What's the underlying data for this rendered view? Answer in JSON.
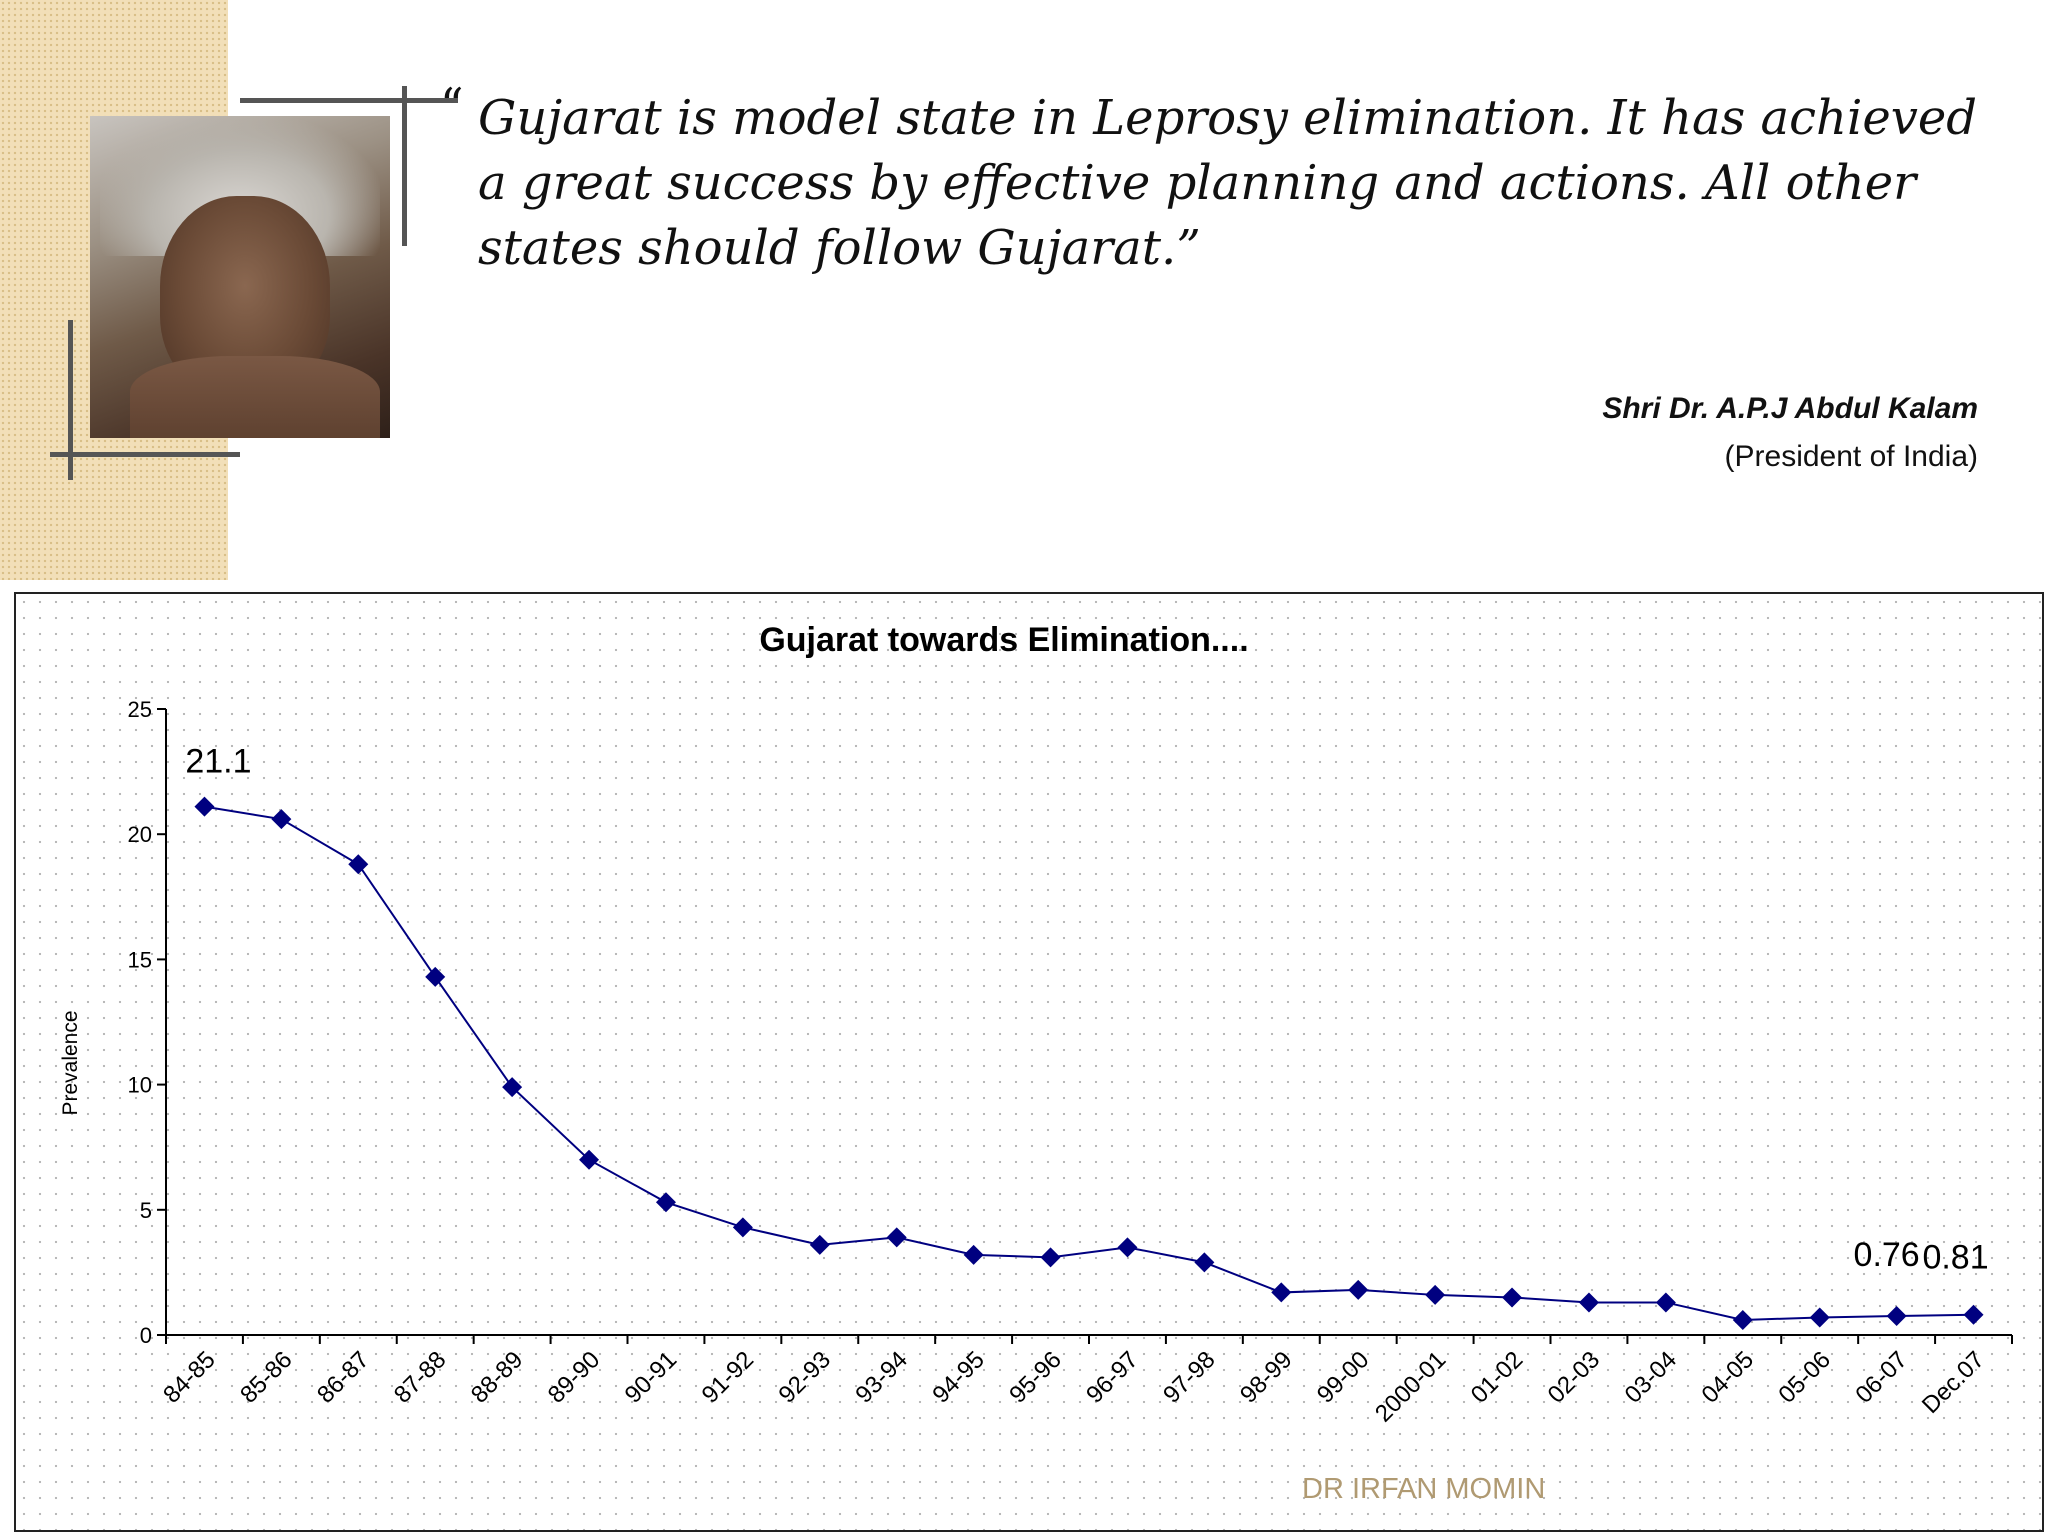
{
  "quote": {
    "text": "Gujarat is model state in Leprosy elimination. It has achieved a great success by effective planning and actions. All other states should follow Gujarat.",
    "author": "Shri  Dr. A.P.J Abdul Kalam",
    "author_title": "(President of India)"
  },
  "watermark": "DR IRFAN MOMIN",
  "colors": {
    "series": "#000080",
    "background_strip": "#f2dfb8"
  },
  "chart_data": {
    "type": "line",
    "title": "Gujarat  towards  Elimination....",
    "ylabel": "Prevalence",
    "xlabel": "",
    "ylim": [
      0,
      25
    ],
    "yticks": [
      0,
      5,
      10,
      15,
      20,
      25
    ],
    "grid": "dotted",
    "categories": [
      "84-85",
      "85-86",
      "86-87",
      "87-88",
      "88-89",
      "89-90",
      "90-91",
      "91-92",
      "92-93",
      "93-94",
      "94-95",
      "95-96",
      "96-97",
      "97-98",
      "98-99",
      "99-00",
      "2000-01",
      "01-02",
      "02-03",
      "03-04",
      "04-05",
      "05-06",
      "06-07",
      "Dec.07"
    ],
    "series": [
      {
        "name": "Prevalence",
        "values": [
          21.1,
          20.6,
          18.8,
          14.3,
          9.9,
          7.0,
          5.3,
          4.3,
          3.6,
          3.9,
          3.2,
          3.1,
          3.5,
          2.9,
          1.7,
          1.8,
          1.6,
          1.5,
          1.3,
          1.3,
          0.6,
          0.7,
          0.76,
          0.81
        ]
      }
    ],
    "data_labels": [
      {
        "index": 0,
        "text": "21.1"
      },
      {
        "index": 22,
        "text": "0.76"
      },
      {
        "index": 23,
        "text": "0.81"
      }
    ]
  }
}
